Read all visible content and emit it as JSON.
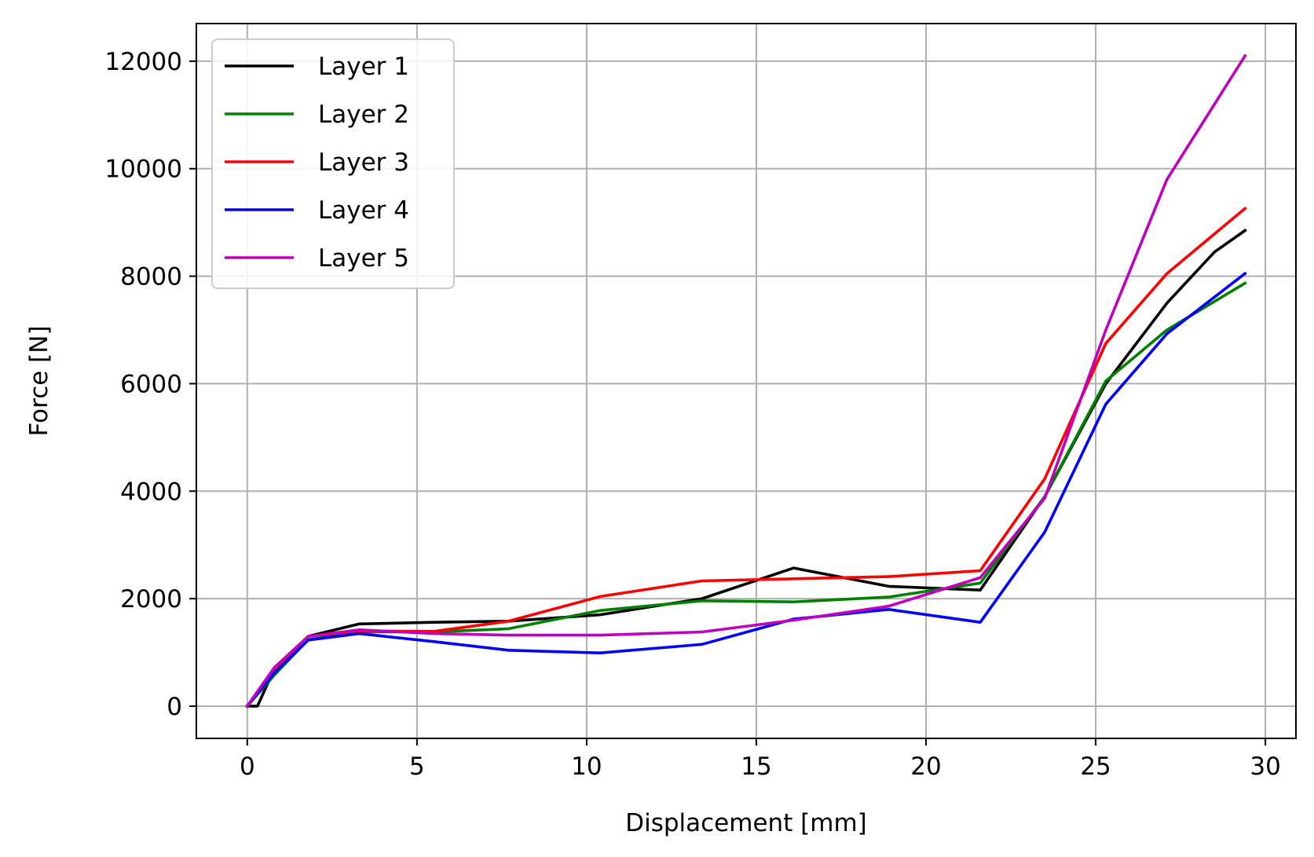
{
  "chart_data": {
    "type": "line",
    "title": "",
    "xlabel": "Displacement [mm]",
    "ylabel": "Force [N]",
    "xlim": [
      -1.5,
      30.9
    ],
    "ylim": [
      -600,
      12700
    ],
    "xticks": [
      0,
      5,
      10,
      15,
      20,
      25,
      30
    ],
    "yticks": [
      0,
      2000,
      4000,
      6000,
      8000,
      10000,
      12000
    ],
    "grid": true,
    "legend_position": "top-left",
    "series": [
      {
        "name": "Layer 1",
        "color": "#000000",
        "x": [
          0,
          0.3,
          0.8,
          1.8,
          3.3,
          5.5,
          7.7,
          10.4,
          13.4,
          16.1,
          18.9,
          21.6,
          23.5,
          25.3,
          27.1,
          28.5,
          29.4
        ],
        "y": [
          0,
          0,
          700,
          1300,
          1530,
          1560,
          1580,
          1700,
          2000,
          2570,
          2230,
          2160,
          3900,
          6000,
          7500,
          8450,
          8850
        ]
      },
      {
        "name": "Layer 2",
        "color": "#008000",
        "x": [
          0,
          0.8,
          1.8,
          3.3,
          5.5,
          7.7,
          10.4,
          13.4,
          16.1,
          18.9,
          21.6,
          23.5,
          25.3,
          27.1,
          29.4
        ],
        "y": [
          0,
          580,
          1240,
          1380,
          1380,
          1440,
          1780,
          1960,
          1940,
          2030,
          2290,
          3900,
          6050,
          7000,
          7870
        ]
      },
      {
        "name": "Layer 3",
        "color": "#ff0000",
        "x": [
          0,
          0.8,
          1.8,
          3.3,
          5.5,
          7.7,
          10.4,
          13.4,
          16.1,
          18.9,
          21.6,
          23.5,
          25.3,
          27.1,
          29.4
        ],
        "y": [
          0,
          680,
          1300,
          1400,
          1390,
          1580,
          2040,
          2330,
          2370,
          2410,
          2520,
          4230,
          6750,
          8050,
          9260
        ]
      },
      {
        "name": "Layer 4",
        "color": "#0000ff",
        "x": [
          0,
          0.8,
          1.8,
          3.3,
          5.5,
          7.7,
          10.4,
          13.4,
          16.1,
          18.9,
          21.6,
          23.5,
          25.3,
          27.1,
          29.4
        ],
        "y": [
          0,
          620,
          1230,
          1350,
          1200,
          1040,
          990,
          1150,
          1620,
          1800,
          1560,
          3240,
          5620,
          6930,
          8050
        ]
      },
      {
        "name": "Layer 5",
        "color": "#bf00bf",
        "x": [
          0,
          0.8,
          1.8,
          3.3,
          5.5,
          7.7,
          10.4,
          13.4,
          16.1,
          18.9,
          21.6,
          23.5,
          25.3,
          27.1,
          29.4
        ],
        "y": [
          0,
          720,
          1300,
          1420,
          1350,
          1320,
          1320,
          1380,
          1600,
          1860,
          2390,
          3870,
          7000,
          9800,
          12100
        ]
      }
    ]
  }
}
